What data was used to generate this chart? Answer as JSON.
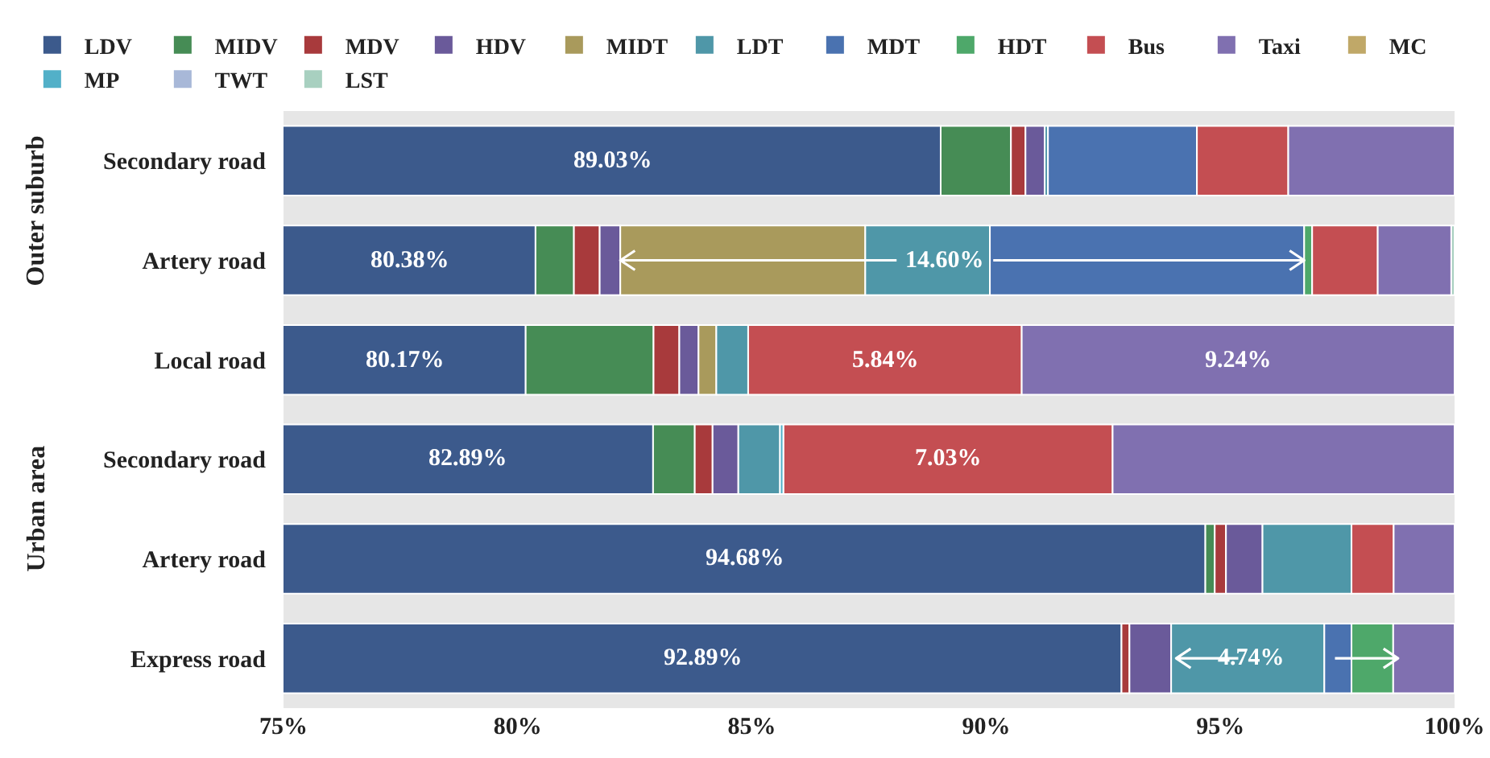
{
  "chart_data": {
    "type": "bar",
    "orientation": "horizontal",
    "categories": [
      "Secondary road",
      "Artery road",
      "Local road",
      "Secondary road",
      "Artery road",
      "Express road"
    ],
    "series": [
      {
        "name": "LDV",
        "color": "#3c5a8c",
        "base": [
          0,
          0,
          0,
          0,
          0,
          0
        ],
        "values": [
          89.03,
          80.38,
          80.17,
          82.89,
          94.68,
          92.89
        ],
        "value_labels": [
          "89.03%",
          "80.38%",
          "80.17%",
          "82.89%",
          "94.68%",
          "92.89%"
        ]
      },
      {
        "name": "MIDV",
        "color": "#468c55",
        "base": [
          89.03,
          80.38,
          80.17,
          82.89,
          94.68,
          null
        ],
        "values": [
          1.5,
          0.82,
          2.73,
          0.89,
          0.2,
          null
        ]
      },
      {
        "name": "MDV",
        "color": "#a83a3c",
        "base": [
          90.53,
          81.2,
          82.9,
          83.78,
          94.88,
          92.89
        ],
        "values": [
          0.31,
          0.55,
          0.55,
          0.38,
          0.24,
          0.17
        ]
      },
      {
        "name": "HDV",
        "color": "#6a5a9a",
        "base": [
          90.84,
          81.75,
          83.45,
          84.16,
          95.12,
          93.06
        ],
        "values": [
          0.41,
          0.44,
          0.41,
          0.55,
          0.78,
          0.89
        ]
      },
      {
        "name": "MIDT",
        "color": "#a99a5c",
        "base": [
          null,
          82.19,
          83.86,
          null,
          null,
          null
        ],
        "values": [
          null,
          5.23,
          0.38,
          null,
          null,
          null
        ]
      },
      {
        "name": "LDT",
        "color": "#4f97a8",
        "base": [
          91.25,
          87.42,
          84.24,
          84.71,
          95.9,
          93.95
        ],
        "values": [
          0.07,
          2.66,
          0.68,
          0.89,
          1.9,
          3.27
        ]
      },
      {
        "name": "MDT",
        "color": "#4a72b0",
        "base": [
          91.32,
          90.08,
          null,
          null,
          null,
          97.22
        ],
        "values": [
          3.18,
          6.71,
          null,
          null,
          null,
          0.58
        ]
      },
      {
        "name": "HDT",
        "color": "#4ea86a",
        "base": [
          null,
          96.79,
          null,
          null,
          null,
          97.8
        ],
        "values": [
          null,
          0.17,
          null,
          null,
          null,
          0.89
        ]
      },
      {
        "name": "Bus",
        "color": "#c44e52",
        "base": [
          94.5,
          96.96,
          84.92,
          85.67,
          97.8,
          null
        ],
        "values": [
          1.95,
          1.4,
          5.84,
          7.03,
          0.9,
          null
        ],
        "value_labels": [
          null,
          null,
          "5.84%",
          "7.03%",
          null,
          null
        ]
      },
      {
        "name": "Taxi",
        "color": "#8070b0",
        "base": [
          96.45,
          98.36,
          90.76,
          92.7,
          98.7,
          98.69
        ],
        "values": [
          3.55,
          1.57,
          9.24,
          7.3,
          1.3,
          1.31
        ],
        "value_labels": [
          null,
          null,
          "9.24%",
          null,
          null,
          null
        ]
      },
      {
        "name": "MC",
        "color": "#c0a868",
        "values": [
          null,
          null,
          null,
          null,
          null,
          null
        ]
      },
      {
        "name": "MP",
        "color": "#52b0c8",
        "base": [
          null,
          null,
          null,
          85.6,
          null,
          null
        ],
        "values": [
          null,
          null,
          null,
          0.07,
          null,
          null
        ]
      },
      {
        "name": "TWT",
        "color": "#a8b8d8",
        "values": [
          null,
          null,
          null,
          null,
          null,
          null
        ]
      },
      {
        "name": "LST",
        "color": "#a8d0c0",
        "base": [
          null,
          99.93,
          null,
          null,
          null,
          null
        ],
        "values": [
          null,
          0.07,
          null,
          null,
          null,
          null
        ]
      }
    ],
    "xlim": [
      75,
      100
    ],
    "xticks": [
      {
        "value": 75,
        "label": "75%"
      },
      {
        "value": 80,
        "label": "80%"
      },
      {
        "value": 85,
        "label": "85%"
      },
      {
        "value": 90,
        "label": "90%"
      },
      {
        "value": 95,
        "label": "95%"
      },
      {
        "value": 100,
        "label": "100%"
      }
    ],
    "annotations": [
      "Outer suburb",
      "Urban area",
      {
        "text": "14.60%",
        "x": 96.79,
        "y": "Artery road"
      },
      "4.74%"
    ],
    "legend": "top",
    "grid": false
  }
}
